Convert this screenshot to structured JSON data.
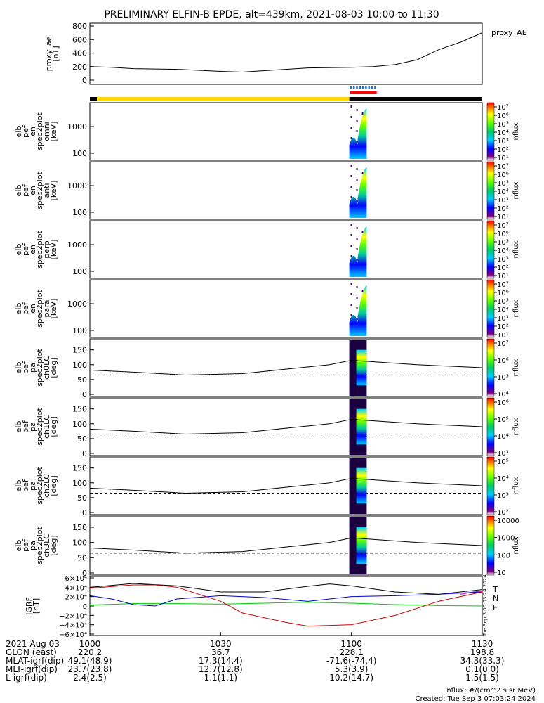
{
  "title": "PRELIMINARY ELFIN-B EPDE, alt=439km, 2021-08-03 10:00 to 11:30",
  "chart_data": [
    {
      "type": "line",
      "ylabel": [
        "proxy_ae",
        "[nT]"
      ],
      "legend": "proxy_AE",
      "yticks": [
        "800",
        "600",
        "400",
        "200",
        "0"
      ],
      "ylim": [
        0,
        800
      ],
      "series": [
        {
          "name": "proxy_AE",
          "x": [
            0,
            5,
            10,
            20,
            30,
            35,
            40,
            50,
            60,
            65,
            70,
            75,
            80,
            85,
            90
          ],
          "y": [
            200,
            190,
            170,
            160,
            130,
            120,
            140,
            180,
            190,
            200,
            230,
            300,
            450,
            560,
            700
          ]
        }
      ]
    },
    {
      "type": "heatmap",
      "ylabel": [
        "elb",
        "pef",
        "en",
        "spec2plot",
        "omni",
        "[keV]"
      ],
      "yticks": [
        "1000",
        "100"
      ],
      "ylog": true,
      "cbar_ticks": [
        "10⁷",
        "10⁶",
        "10⁵",
        "10⁴",
        "10³",
        "10²",
        "10¹"
      ],
      "cbar_label": "nflux"
    },
    {
      "type": "heatmap",
      "ylabel": [
        "elb",
        "pef",
        "en",
        "spec2plot",
        "anti",
        "[keV]"
      ],
      "yticks": [
        "1000",
        "100"
      ],
      "ylog": true,
      "cbar_ticks": [
        "10⁷",
        "10⁶",
        "10⁵",
        "10⁴",
        "10³",
        "10²",
        "10¹"
      ],
      "cbar_label": "nflux"
    },
    {
      "type": "heatmap",
      "ylabel": [
        "elb",
        "pef",
        "en",
        "spec2plot",
        "perp",
        "[keV]"
      ],
      "yticks": [
        "1000",
        "100"
      ],
      "ylog": true,
      "cbar_ticks": [
        "10⁷",
        "10⁶",
        "10⁵",
        "10⁴",
        "10³",
        "10²",
        "10¹"
      ],
      "cbar_label": "nflux"
    },
    {
      "type": "heatmap",
      "ylabel": [
        "elb",
        "pef",
        "en",
        "spec2plot",
        "para",
        "[keV]"
      ],
      "yticks": [
        "1000",
        "100"
      ],
      "ylog": true,
      "cbar_ticks": [
        "10⁷",
        "10⁶",
        "10⁵",
        "10⁴",
        "10³",
        "10²",
        "10¹"
      ],
      "cbar_label": "nflux"
    },
    {
      "type": "heatmap",
      "ylabel": [
        "elb",
        "pef",
        "pa",
        "spec2plot",
        "ch0LC",
        "[deg]"
      ],
      "yticks": [
        "150",
        "100",
        "50",
        "0"
      ],
      "ylim": [
        0,
        180
      ],
      "cbar_ticks": [
        "10⁷",
        "10⁶",
        "10⁵",
        "10⁴"
      ],
      "cbar_label": "nflux",
      "lc_deg": [
        82,
        75,
        65,
        70,
        85,
        100,
        115,
        100,
        90
      ],
      "lc_dash_deg": 65
    },
    {
      "type": "heatmap",
      "ylabel": [
        "elb",
        "pef",
        "pa",
        "spec2plot",
        "ch1LC",
        "[deg]"
      ],
      "yticks": [
        "150",
        "100",
        "50",
        "0"
      ],
      "ylim": [
        0,
        180
      ],
      "cbar_ticks": [
        "10⁶",
        "10⁵",
        "10⁴",
        "10³"
      ],
      "cbar_label": "nflux",
      "lc_deg": [
        82,
        75,
        65,
        70,
        85,
        100,
        115,
        100,
        90
      ],
      "lc_dash_deg": 65
    },
    {
      "type": "heatmap",
      "ylabel": [
        "elb",
        "pef",
        "pa",
        "spec2plot",
        "ch2LC",
        "[deg]"
      ],
      "yticks": [
        "150",
        "100",
        "50",
        "0"
      ],
      "ylim": [
        0,
        180
      ],
      "cbar_ticks": [
        "10⁵",
        "10⁴",
        "10³",
        "10²"
      ],
      "cbar_label": "nflux",
      "lc_deg": [
        82,
        75,
        65,
        70,
        85,
        100,
        115,
        100,
        90
      ],
      "lc_dash_deg": 65
    },
    {
      "type": "heatmap",
      "ylabel": [
        "elb",
        "pef",
        "pa",
        "spec2plot",
        "ch3LC",
        "[deg]"
      ],
      "yticks": [
        "150",
        "100",
        "50",
        "0"
      ],
      "ylim": [
        0,
        180
      ],
      "cbar_ticks": [
        "10000",
        "1000",
        "100",
        "10"
      ],
      "cbar_label": "nflux",
      "lc_deg": [
        82,
        75,
        65,
        70,
        85,
        100,
        115,
        100,
        90
      ],
      "lc_dash_deg": 65
    },
    {
      "type": "line",
      "ylabel": [
        "IGRF",
        "[nT]"
      ],
      "yticks": [
        "6×10⁴",
        "4×10⁴",
        "2×10⁴",
        "0",
        "−2×10⁴",
        "−4×10⁴",
        "−6×10⁴"
      ],
      "ylim": [
        -60000,
        60000
      ],
      "legend": [
        "T",
        "N",
        "E"
      ],
      "series": [
        {
          "name": "T",
          "color": "#000000",
          "x": [
            0,
            10,
            20,
            30,
            40,
            50,
            55,
            60,
            70,
            80,
            90
          ],
          "y": [
            40000,
            48000,
            43000,
            30000,
            30000,
            42000,
            47000,
            43000,
            30000,
            25000,
            35000
          ]
        },
        {
          "name": "N",
          "color": "#cc00cc",
          "x": [
            85,
            88,
            90
          ],
          "y": [
            25000,
            30000,
            32000
          ]
        },
        {
          "name": "E",
          "color": "#00cc00",
          "x": [
            0,
            10,
            20,
            30,
            40,
            50,
            60,
            70,
            80,
            90
          ],
          "y": [
            2000,
            5000,
            5000,
            4000,
            6000,
            8000,
            6000,
            3000,
            1000,
            0
          ]
        },
        {
          "name": "blue",
          "color": "#0000cc",
          "x": [
            0,
            5,
            10,
            15,
            20,
            30,
            40,
            50,
            60,
            70,
            80,
            90
          ],
          "y": [
            22000,
            15000,
            3000,
            0,
            15000,
            22000,
            18000,
            10000,
            20000,
            22000,
            25000,
            30000
          ]
        },
        {
          "name": "red",
          "color": "#cc0000",
          "x": [
            0,
            10,
            15,
            20,
            30,
            35,
            45,
            50,
            60,
            70,
            80,
            90
          ],
          "y": [
            38000,
            45000,
            45000,
            40000,
            10000,
            -15000,
            -35000,
            -43000,
            -40000,
            -20000,
            10000,
            30000
          ]
        }
      ]
    }
  ],
  "timestamp_vertical": "Tue Sep  3 00:03:24 2024",
  "footer": {
    "rows": [
      {
        "label": "2021 Aug 03",
        "values": [
          "1000",
          "1030",
          "1100",
          "1130"
        ]
      },
      {
        "label": "GLON (east)",
        "values": [
          "220.2",
          "36.7",
          "228.1",
          "198.8"
        ]
      },
      {
        "label": "MLAT-igrf(dip)",
        "values": [
          "49.1(48.9)",
          "17.3(14.4)",
          "-71.6(-74.4)",
          "34.3(33.3)"
        ]
      },
      {
        "label": "MLT-igrf(dip)",
        "values": [
          "23.7(23.8)",
          "12.7(12.8)",
          "5.3(3.9)",
          "0.1(0.0)"
        ]
      },
      {
        "label": "L-igrf(dip)",
        "values": [
          "2.4(2.5)",
          "1.1(1.1)",
          "10.2(14.7)",
          "1.5(1.5)"
        ]
      }
    ],
    "nflux_units": "nflux: #/(cm^2 s sr MeV)",
    "created": "Created: Tue Sep  3 07:03:24 2024"
  }
}
